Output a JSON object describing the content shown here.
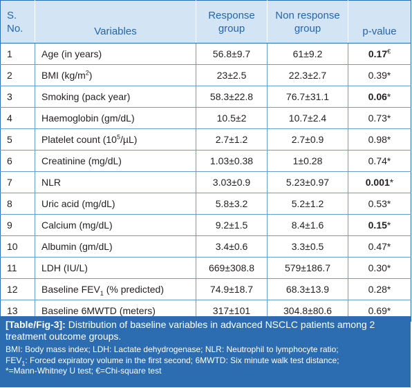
{
  "table": {
    "headers": {
      "sno": [
        "S.",
        "No."
      ],
      "variables": "Variables",
      "response": [
        "Response",
        "group"
      ],
      "nonresponse": [
        "Non response",
        "group"
      ],
      "pvalue": "p-value"
    },
    "rows": [
      {
        "sno": "1",
        "var": "Age (in years)",
        "resp": "56.8±9.7",
        "nonresp": "61±9.2",
        "p": "0.17",
        "pmark": "€",
        "bold": true
      },
      {
        "sno": "2",
        "var": "BMI (kg/m",
        "sup": "2",
        "var_end": ")",
        "resp": "23±2.5",
        "nonresp": "22.3±2.7",
        "p": "0.39",
        "pmark": "*",
        "bold": false
      },
      {
        "sno": "3",
        "var": "Smoking (pack year)",
        "resp": "58.3±22.8",
        "nonresp": "76.7±31.1",
        "p": "0.06",
        "pmark": "*",
        "bold": true
      },
      {
        "sno": "4",
        "var": "Haemoglobin (gm/dL)",
        "resp": "10.5±2",
        "nonresp": "10.7±2.4",
        "p": "0.73",
        "pmark": "*",
        "bold": false
      },
      {
        "sno": "5",
        "var": "Platelet count (10",
        "sup": "5",
        "var_end": "/µL)",
        "resp": "2.7±1.2",
        "nonresp": "2.7±0.9",
        "p": "0.98",
        "pmark": "*",
        "bold": false
      },
      {
        "sno": "6",
        "var": "Creatinine (mg/dL)",
        "resp": "1.03±0.38",
        "nonresp": "1±0.28",
        "p": "0.74",
        "pmark": "*",
        "bold": false
      },
      {
        "sno": "7",
        "var": "NLR",
        "resp": "3.03±0.9",
        "nonresp": "5.23±0.97",
        "p": "0.001",
        "pmark": "*",
        "bold": true
      },
      {
        "sno": "8",
        "var": "Uric acid (mg/dL)",
        "resp": "5.8±3.2",
        "nonresp": "5.2±1.2",
        "p": "0.53",
        "pmark": "*",
        "bold": false
      },
      {
        "sno": "9",
        "var": "Calcium (mg/dL)",
        "resp": "9.2±1.5",
        "nonresp": "8.4±1.6",
        "p": "0.15",
        "pmark": "*",
        "bold": true
      },
      {
        "sno": "10",
        "var": "Albumin (gm/dL)",
        "resp": "3.4±0.6",
        "nonresp": "3.3±0.5",
        "p": "0.47",
        "pmark": "*",
        "bold": false
      },
      {
        "sno": "11",
        "var": "LDH (IU/L)",
        "resp": "669±308.8",
        "nonresp": "579±186.7",
        "p": "0.30",
        "pmark": "*",
        "bold": false
      },
      {
        "sno": "12",
        "var": "Baseline FEV",
        "sub": "1",
        "var_end": " (% predicted)",
        "resp": "74.9±18.7",
        "nonresp": "68.3±13.9",
        "p": "0.28",
        "pmark": "*",
        "bold": false
      },
      {
        "sno": "13",
        "var": "Baseline 6MWTD (meters)",
        "resp": "317±101",
        "nonresp": "304.8±80.6",
        "p": "0.69",
        "pmark": "*",
        "bold": false
      }
    ]
  },
  "caption": {
    "label": "[Table/Fig-3]:",
    "text": " Distribution of baseline variables in advanced NSCLC patients among 2 treatment outcome groups.",
    "abbr_line1": "BMI: Body mass index; LDH: Lactate dehydrogenase; NLR: Neutrophil to lymphocyte ratio;",
    "abbr_line2_a": "FEV",
    "abbr_line2_sub": "1",
    "abbr_line2_b": ": Forced expiratory volume in the first second; 6MWTD: Six minute walk test distance;",
    "abbr_line3": "*=Mann-Whitney U test; €=Chi-square test"
  },
  "colors": {
    "header_bg": "#d3e4f4",
    "header_text": "#2466ad",
    "rule": "#6b9bd0",
    "caption_bg": "#2c6cb0"
  }
}
